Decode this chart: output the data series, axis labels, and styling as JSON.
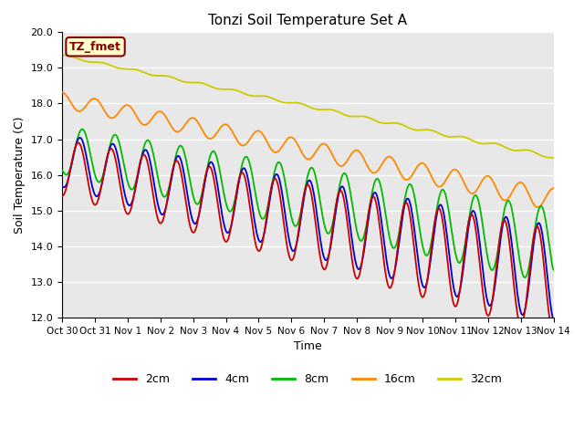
{
  "title": "Tonzi Soil Temperature Set A",
  "ylabel": "Soil Temperature (C)",
  "xlabel": "Time",
  "ylim": [
    12.0,
    20.0
  ],
  "yticks": [
    12.0,
    13.0,
    14.0,
    15.0,
    16.0,
    17.0,
    18.0,
    19.0,
    20.0
  ],
  "xtick_labels": [
    "Oct 30",
    "Oct 31",
    "Nov 1",
    "Nov 2",
    "Nov 3",
    "Nov 4",
    "Nov 5",
    "Nov 6",
    "Nov 7",
    "Nov 8",
    "Nov 9",
    "Nov 10",
    "Nov 11",
    "Nov 12",
    "Nov 13",
    "Nov 14"
  ],
  "colors": {
    "2cm": "#cc0000",
    "4cm": "#0000cc",
    "8cm": "#00bb00",
    "16cm": "#ff8800",
    "32cm": "#cccc00"
  },
  "annotation_text": "TZ_fmet",
  "annotation_color": "#880000",
  "annotation_bg": "#ffffcc",
  "bg_color": "#e8e8e8",
  "n_days": 15,
  "points_per_day": 48
}
